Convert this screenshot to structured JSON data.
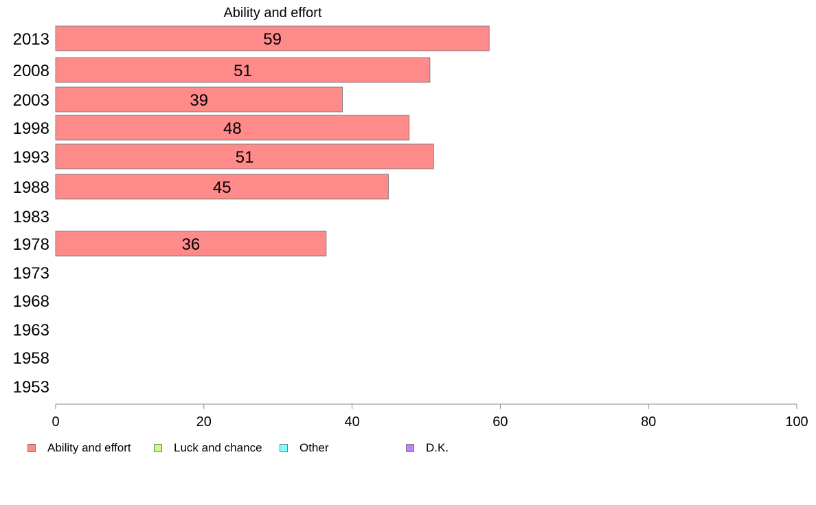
{
  "chart_data": {
    "type": "bar",
    "orientation": "horizontal",
    "title": "Ability and effort",
    "categories": [
      "2013",
      "2008",
      "2003",
      "1998",
      "1993",
      "1988",
      "1983",
      "1978",
      "1973",
      "1968",
      "1963",
      "1958",
      "1953"
    ],
    "series": [
      {
        "name": "Ability and effort",
        "color": "#ff8a8a",
        "values": [
          58.5,
          50.5,
          38.7,
          47.7,
          51.0,
          44.9,
          null,
          36.5,
          null,
          null,
          null,
          null,
          null
        ]
      }
    ],
    "data_labels": [
      "59",
      "51",
      "39",
      "48",
      "51",
      "45",
      "",
      "36",
      "",
      "",
      "",
      "",
      ""
    ],
    "xlim": [
      0,
      100
    ],
    "xticks": [
      "0",
      "20",
      "40",
      "60",
      "80",
      "100"
    ],
    "grid": false,
    "legend": {
      "position": "bottom",
      "items": [
        {
          "label": "Ability and effort",
          "color": "#ff8a8a"
        },
        {
          "label": "Luck and chance",
          "color": "#c8ff80"
        },
        {
          "label": "Other",
          "color": "#80ffff"
        },
        {
          "label": "D.K.",
          "color": "#c080ff"
        }
      ]
    }
  }
}
